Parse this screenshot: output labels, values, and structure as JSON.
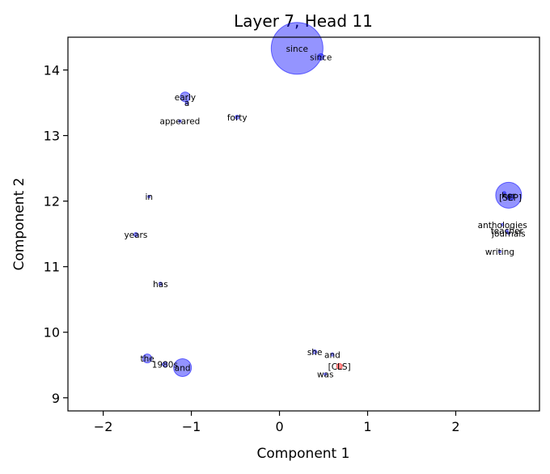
{
  "chart_data": {
    "type": "scatter",
    "title": "Layer 7, Head 11",
    "xlabel": "Component 1",
    "ylabel": "Component 2",
    "xlim": [
      -2.4,
      2.95
    ],
    "ylim": [
      8.8,
      14.5
    ],
    "xticks": [
      -2,
      -1,
      0,
      1,
      2
    ],
    "yticks": [
      9,
      10,
      11,
      12,
      13,
      14
    ],
    "grid": false,
    "colors": {
      "point": "#0000ff",
      "highlight": "#ff0000"
    },
    "points": [
      {
        "label": "since",
        "x": 0.2,
        "y": 14.33,
        "size": 32,
        "color": "#0000ff"
      },
      {
        "label": "since",
        "x": 0.47,
        "y": 14.2,
        "size": 4,
        "color": "#0000ff"
      },
      {
        "label": "early",
        "x": -1.07,
        "y": 13.59,
        "size": 6,
        "color": "#0000ff"
      },
      {
        "label": "a",
        "x": -1.05,
        "y": 13.5,
        "size": 2,
        "color": "#0000ff"
      },
      {
        "label": "forty",
        "x": -0.48,
        "y": 13.28,
        "size": 2.5,
        "color": "#0000ff"
      },
      {
        "label": "appeared",
        "x": -1.13,
        "y": 13.22,
        "size": 1.5,
        "color": "#0000ff"
      },
      {
        "label": "in",
        "x": -1.48,
        "y": 12.07,
        "size": 1.5,
        "color": "#0000ff"
      },
      {
        "label": "years",
        "x": -1.63,
        "y": 11.49,
        "size": 2.5,
        "color": "#0000ff"
      },
      {
        "label": "has",
        "x": -1.35,
        "y": 10.74,
        "size": 2,
        "color": "#0000ff"
      },
      {
        "label": "her",
        "x": 2.6,
        "y": 12.09,
        "size": 16,
        "color": "#0000ff"
      },
      {
        "label": "[SEP]",
        "x": 2.62,
        "y": 12.06,
        "size": 4,
        "color": "#0000ff"
      },
      {
        "label": ",",
        "x": 2.55,
        "y": 12.12,
        "size": 2,
        "color": "#0000ff"
      },
      {
        "label": "anthologies",
        "x": 2.53,
        "y": 11.64,
        "size": 1.5,
        "color": "#0000ff"
      },
      {
        "label": "teacher",
        "x": 2.58,
        "y": 11.55,
        "size": 1.5,
        "color": "#0000ff"
      },
      {
        "label": "journals",
        "x": 2.6,
        "y": 11.51,
        "size": 1.5,
        "color": "#0000ff"
      },
      {
        "label": "writing",
        "x": 2.5,
        "y": 11.23,
        "size": 1.5,
        "color": "#0000ff"
      },
      {
        "label": "she",
        "x": 0.4,
        "y": 9.7,
        "size": 2.5,
        "color": "#0000ff"
      },
      {
        "label": "and",
        "x": 0.6,
        "y": 9.66,
        "size": 2,
        "color": "#0000ff"
      },
      {
        "label": "[CLS]",
        "x": 0.68,
        "y": 9.48,
        "size": 3.5,
        "color": "#ff0000"
      },
      {
        "label": "was",
        "x": 0.52,
        "y": 9.36,
        "size": 1.5,
        "color": "#0000ff"
      },
      {
        "label": "the",
        "x": -1.5,
        "y": 9.6,
        "size": 5.5,
        "color": "#0000ff"
      },
      {
        "label": "1980s",
        "x": -1.3,
        "y": 9.51,
        "size": 3,
        "color": "#0000ff"
      },
      {
        "label": "and",
        "x": -1.1,
        "y": 9.46,
        "size": 11,
        "color": "#0000ff"
      }
    ]
  }
}
